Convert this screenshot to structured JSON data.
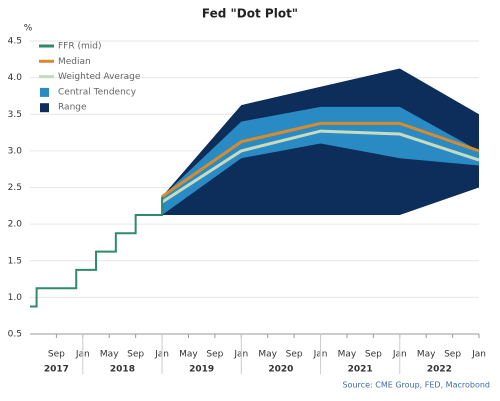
{
  "chart_data": {
    "type": "fan",
    "title": "Fed \"Dot Plot\"",
    "y_label": "%",
    "source": "Source: CME Group, FED, Macrobond",
    "legend": "upper left",
    "grid": true,
    "xlim": [
      "2017-05",
      "2023-01"
    ],
    "ylim": [
      0.5,
      4.5
    ],
    "yticks": [
      0.5,
      {
        "value": 1.0,
        "label": "1.0"
      },
      1.5,
      {
        "value": 2.0,
        "label": "2.0"
      },
      2.5,
      {
        "value": 3.0,
        "label": "3.0"
      },
      3.5,
      {
        "value": 4.0,
        "label": "4.0"
      },
      4.5
    ],
    "xticks": [
      {
        "value": "2017-09",
        "label": "Sep"
      },
      {
        "value": "2018-01",
        "label": "Jan"
      },
      {
        "value": "2018-05",
        "label": "May"
      },
      {
        "value": "2018-09",
        "label": "Sep"
      },
      {
        "value": "2019-01",
        "label": "Jan"
      },
      {
        "value": "2019-05",
        "label": "May"
      },
      {
        "value": "2019-09",
        "label": "Sep"
      },
      {
        "value": "2020-01",
        "label": "Jan"
      },
      {
        "value": "2020-05",
        "label": "May"
      },
      {
        "value": "2020-09",
        "label": "Sep"
      },
      {
        "value": "2021-01",
        "label": "Jan"
      },
      {
        "value": "2021-05",
        "label": "May"
      },
      {
        "value": "2021-09",
        "label": "Sep"
      },
      {
        "value": "2022-01",
        "label": "Jan"
      },
      {
        "value": "2022-05",
        "label": "May"
      },
      {
        "value": "2022-09",
        "label": "Sep"
      },
      {
        "value": "2023-01",
        "label": "Jan"
      }
    ],
    "years": [
      "2017",
      "2018",
      "2019",
      "2020",
      "2021",
      "2022"
    ],
    "fan_x": [
      "2019-01",
      "2020-01",
      "2021-01",
      "2022-01",
      "2023-01"
    ],
    "series": [
      {
        "name": "FFR (mid)",
        "kind": "line",
        "color": "#2e8a6c",
        "x": [
          "2017-05",
          "2017-06",
          "2017-06",
          "2017-12",
          "2017-12",
          "2018-03",
          "2018-03",
          "2018-06",
          "2018-06",
          "2018-09",
          "2018-09",
          "2019-01",
          "2019-01"
        ],
        "values": [
          0.875,
          0.875,
          1.125,
          1.125,
          1.375,
          1.375,
          1.625,
          1.625,
          1.875,
          1.875,
          2.125,
          2.125,
          2.375
        ]
      },
      {
        "name": "Median",
        "kind": "fan-line",
        "color": "#d98b2b",
        "values": [
          2.375,
          3.125,
          3.375,
          3.375,
          3.0
        ]
      },
      {
        "name": "Weighted Average",
        "kind": "fan-line",
        "color": "#c9dbbc",
        "values": [
          2.3,
          3.0,
          3.27,
          3.23,
          2.875
        ]
      },
      {
        "name": "Central Tendency",
        "kind": "band",
        "color": "#2a8bc4",
        "lower": [
          2.125,
          2.9,
          3.1,
          2.9,
          2.8
        ],
        "upper": [
          2.375,
          3.4,
          3.6,
          3.6,
          3.0
        ]
      },
      {
        "name": "Range",
        "kind": "band",
        "color": "#0d2d5b",
        "lower": [
          2.125,
          2.125,
          2.125,
          2.125,
          2.5
        ],
        "upper": [
          2.375,
          3.625,
          3.875,
          4.125,
          3.5
        ]
      }
    ]
  }
}
